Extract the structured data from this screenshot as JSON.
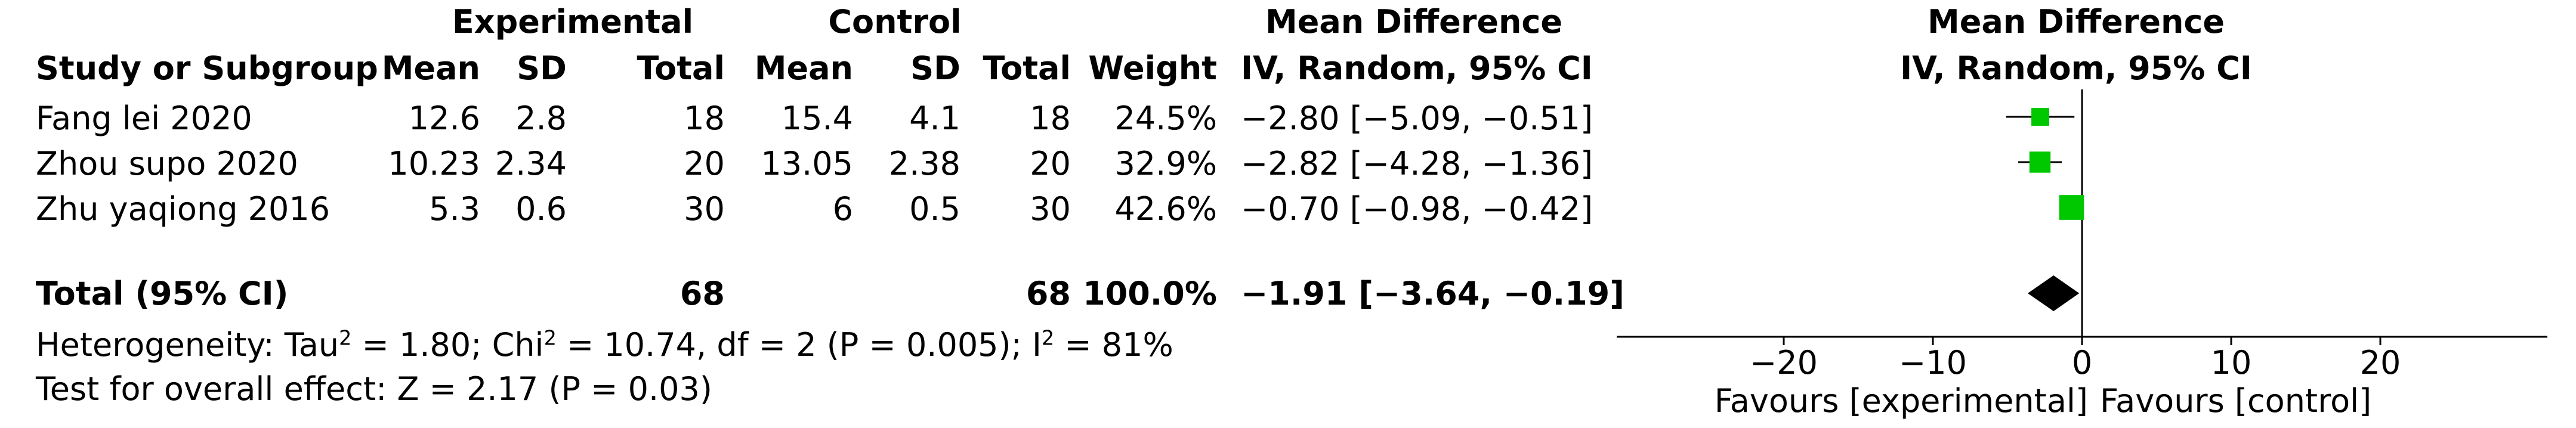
{
  "header": {
    "group_experimental": "Experimental",
    "group_control": "Control",
    "group_md": "Mean Difference",
    "plot_title": "Mean Difference",
    "plot_subtitle": "IV, Random, 95% CI",
    "col_study": "Study or Subgroup",
    "col_e_mean": "Mean",
    "col_e_sd": "SD",
    "col_e_total": "Total",
    "col_c_mean": "Mean",
    "col_c_sd": "SD",
    "col_c_total": "Total",
    "col_weight": "Weight",
    "col_md": "IV, Random, 95% CI"
  },
  "studies": [
    {
      "name": "Fang lei 2020",
      "e_mean": "12.6",
      "e_sd": "2.8",
      "e_total": "18",
      "c_mean": "15.4",
      "c_sd": "4.1",
      "c_total": "18",
      "weight": "24.5%",
      "ci_text": "−2.80 [−5.09, −0.51]"
    },
    {
      "name": "Zhou supo 2020",
      "e_mean": "10.23",
      "e_sd": "2.34",
      "e_total": "20",
      "c_mean": "13.05",
      "c_sd": "2.38",
      "c_total": "20",
      "weight": "32.9%",
      "ci_text": "−2.82 [−4.28, −1.36]"
    },
    {
      "name": "Zhu yaqiong 2016",
      "e_mean": "5.3",
      "e_sd": "0.6",
      "e_total": "30",
      "c_mean": "6",
      "c_sd": "0.5",
      "c_total": "30",
      "weight": "42.6%",
      "ci_text": "−0.70 [−0.98, −0.42]"
    }
  ],
  "total": {
    "label": "Total (95% CI)",
    "e_total": "68",
    "c_total": "68",
    "weight": "100.0%",
    "ci_text": "−1.91 [−3.64, −0.19]"
  },
  "heterogeneity": {
    "prefix": "Heterogeneity: Tau",
    "tau_exp": "2",
    "mid1": " = 1.80; Chi",
    "chi_exp": "2",
    "mid2": " = 10.74, df = 2 (P = 0.005); I",
    "i_exp": "2",
    "suffix": " = 81%"
  },
  "overall_effect": "Test for overall effect: Z = 2.17 (P = 0.03)",
  "axis_labels": {
    "favours_left": "Favours [experimental]",
    "favours_right": "Favours [control]"
  },
  "colors": {
    "study_marker": "#00c800",
    "summary_diamond": "#000000",
    "line": "#000000"
  },
  "chart_data": {
    "type": "forest",
    "measure": "Mean Difference, IV, Random, 95% CI",
    "x_ticks": [
      -20,
      -10,
      0,
      10,
      20
    ],
    "x_tick_labels": [
      "−20",
      "−10",
      "0",
      "10",
      "20"
    ],
    "xlim": [
      -30,
      30
    ],
    "null_value": 0,
    "studies": [
      {
        "name": "Fang lei 2020",
        "md": -2.8,
        "lower": -5.09,
        "upper": -0.51,
        "weight": 24.5
      },
      {
        "name": "Zhou supo 2020",
        "md": -2.82,
        "lower": -4.28,
        "upper": -1.36,
        "weight": 32.9
      },
      {
        "name": "Zhu yaqiong 2016",
        "md": -0.7,
        "lower": -0.98,
        "upper": -0.42,
        "weight": 42.6
      }
    ],
    "summary": {
      "md": -1.91,
      "lower": -3.64,
      "upper": -0.19
    }
  }
}
